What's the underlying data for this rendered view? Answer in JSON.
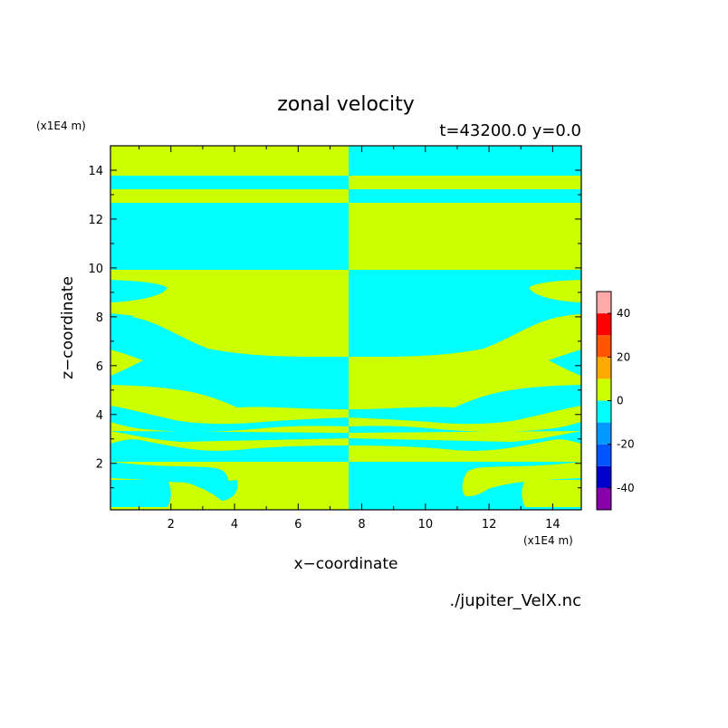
{
  "chart_data": {
    "type": "heatmap",
    "title": "zonal velocity",
    "subtitle": "t=43200.0 y=0.0",
    "xlabel": "x−coordinate",
    "ylabel": "z−coordinate",
    "x_unit": "(x1E4 m)",
    "y_unit": "(x1E4 m)",
    "xlim": [
      0.1,
      14.9
    ],
    "ylim": [
      0.1,
      15
    ],
    "xticks": [
      2,
      4,
      6,
      8,
      10,
      12,
      14
    ],
    "yticks": [
      2,
      4,
      6,
      8,
      10,
      12,
      14
    ],
    "colorbar": {
      "levels": [
        -50,
        -40,
        -30,
        -20,
        -10,
        0,
        10,
        20,
        30,
        40,
        50
      ],
      "colors": [
        "#8800aa",
        "#0000cc",
        "#0055ff",
        "#0099ff",
        "#00ffff",
        "#ccff00",
        "#ffaa00",
        "#ff5500",
        "#ff0000",
        "#ffaaaa"
      ],
      "tick_labels": [
        "-40",
        "-20",
        "0",
        "20",
        "40"
      ],
      "tick_values": [
        -40,
        -20,
        0,
        20,
        40
      ]
    },
    "field_structure": "antisymmetric about x=7.5; yellow-green (0 to 10) and cyan (-10 to 0) alternating layers",
    "source_file": "./jupiter_VelX.nc"
  },
  "colors": {
    "positive": "#ccff00",
    "negative": "#00ffff"
  }
}
